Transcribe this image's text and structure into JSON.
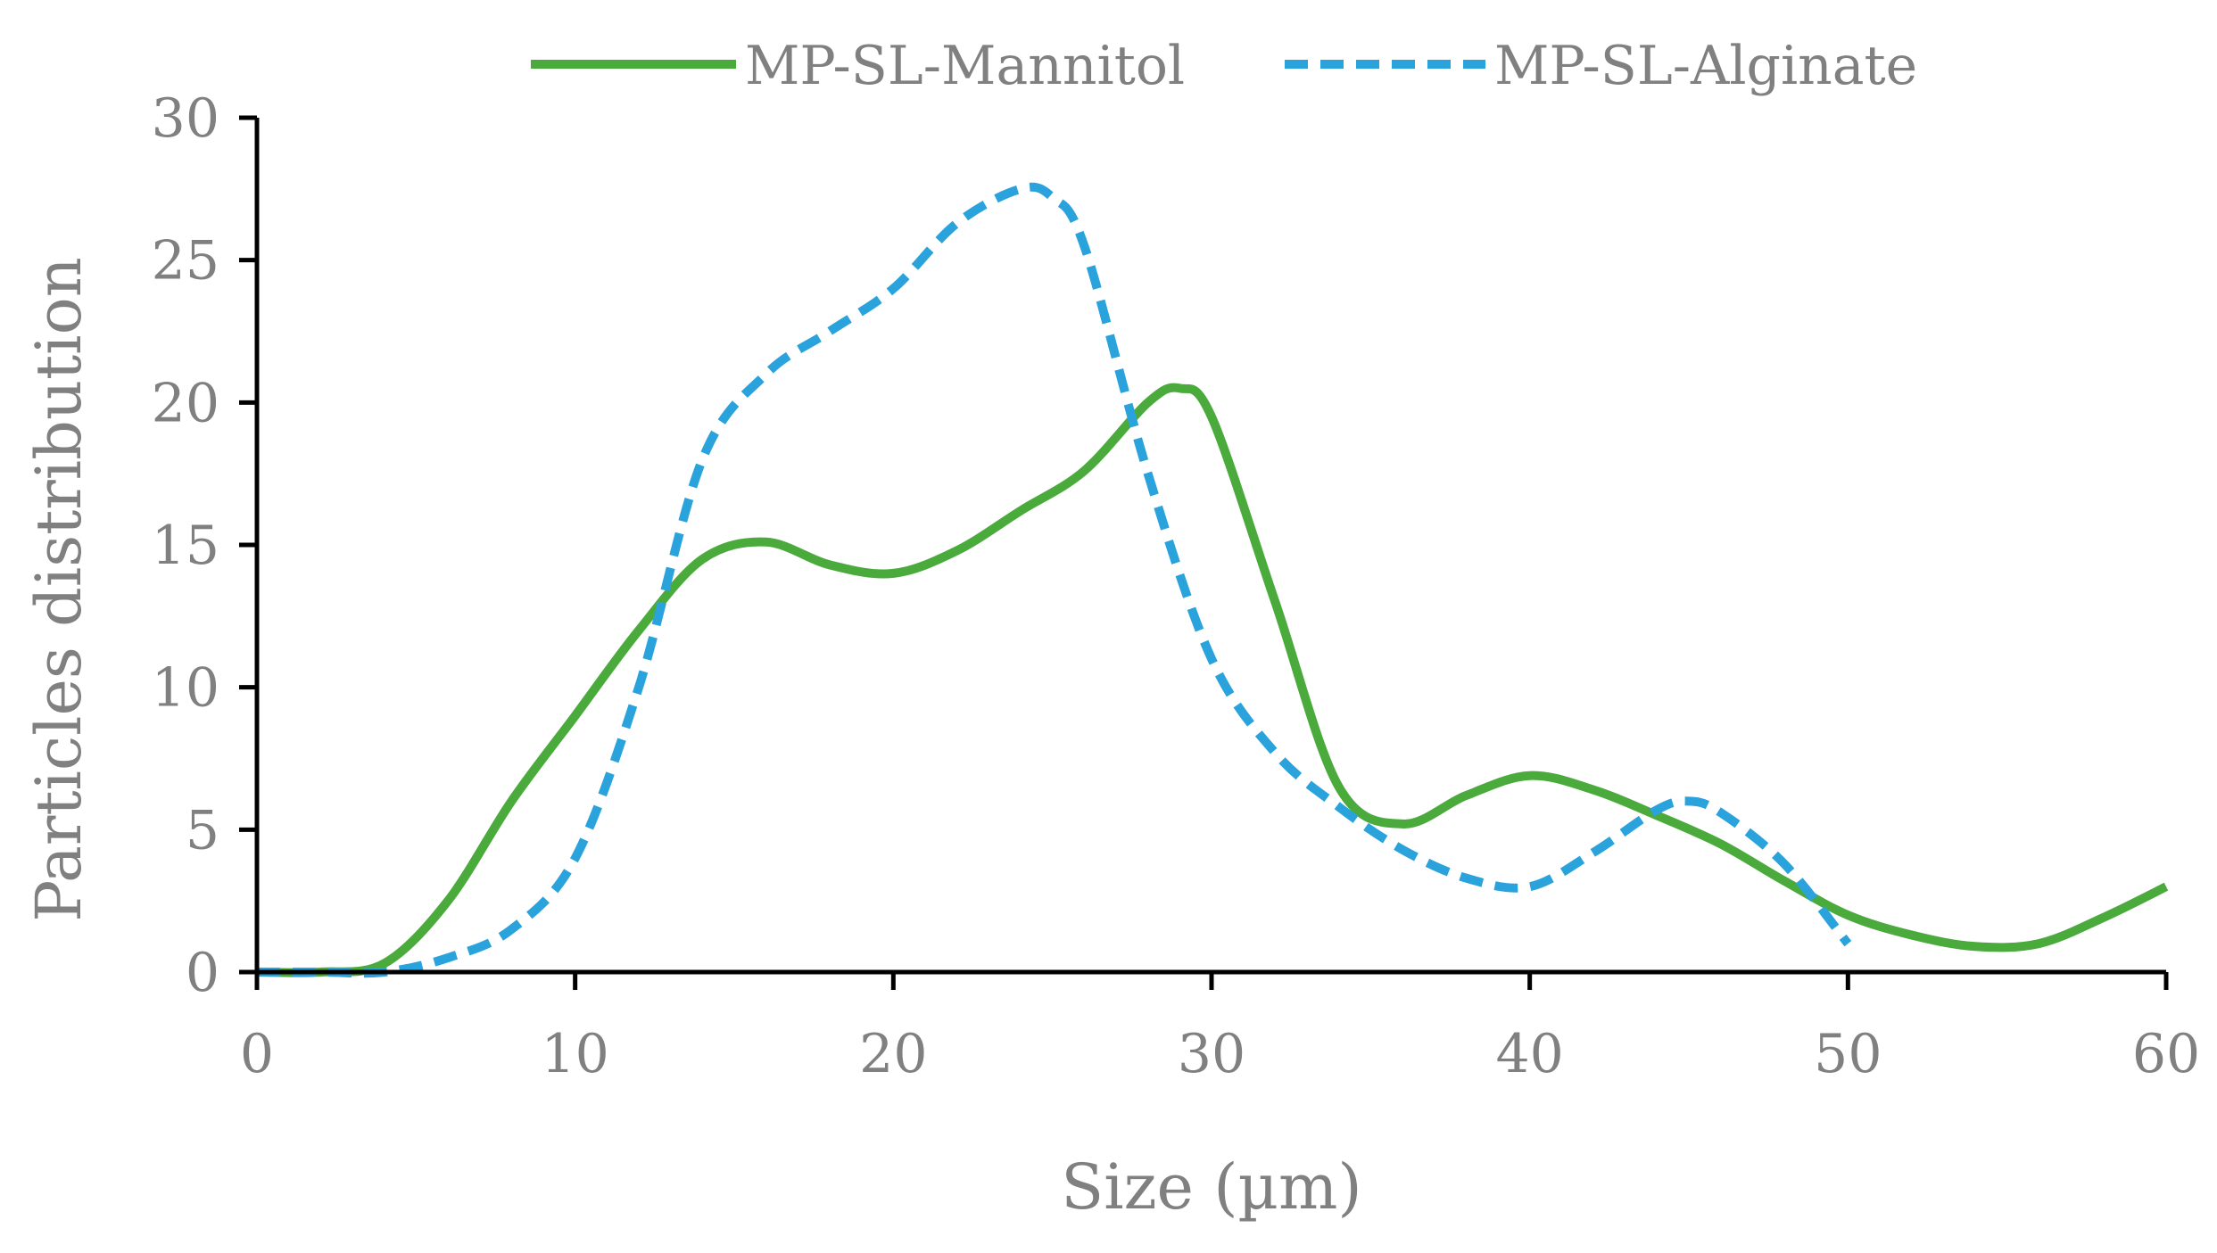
{
  "chart_data": {
    "type": "line",
    "title": "",
    "xlabel": "Size (µm)",
    "ylabel": "Particles distribution",
    "xlim": [
      0,
      60
    ],
    "ylim": [
      0,
      30
    ],
    "x_ticks": [
      0,
      10,
      20,
      30,
      40,
      50,
      60
    ],
    "y_ticks": [
      0,
      5,
      10,
      15,
      20,
      25,
      30
    ],
    "x_tick_labels": [
      "0",
      "10",
      "20",
      "30",
      "40",
      "50",
      "60"
    ],
    "y_tick_labels": [
      "0",
      "5",
      "10",
      "15",
      "20",
      "25",
      "30"
    ],
    "grid": false,
    "legend_position": "top-center",
    "series": [
      {
        "name": "MP-SL-Mannitol",
        "color": "#4aab3c",
        "style": "solid",
        "x": [
          0,
          2,
          4,
          6,
          8,
          10,
          12,
          14,
          16,
          18,
          20,
          22,
          24,
          26,
          28,
          29,
          30,
          32,
          34,
          36,
          38,
          40,
          42,
          44,
          46,
          48,
          50,
          52,
          54,
          56,
          58,
          60
        ],
        "values": [
          0,
          0,
          0.3,
          2.5,
          6,
          9,
          12,
          14.5,
          15.1,
          14.3,
          14,
          14.8,
          16.2,
          17.6,
          20,
          20.5,
          19.5,
          13,
          6.5,
          5.2,
          6.2,
          6.9,
          6.4,
          5.5,
          4.5,
          3.2,
          2,
          1.3,
          0.9,
          1,
          1.9,
          3
        ]
      },
      {
        "name": "MP-SL-Alginate",
        "color": "#2aa3dc",
        "style": "dashed",
        "x": [
          0,
          2,
          4,
          6,
          8,
          10,
          12,
          14,
          16,
          18,
          20,
          22,
          24,
          25,
          26,
          28,
          30,
          32,
          34,
          36,
          38,
          40,
          42,
          44,
          45,
          46,
          48,
          50
        ],
        "values": [
          0,
          0,
          0,
          0.5,
          1.5,
          4,
          10,
          18,
          21,
          22.5,
          24,
          26.3,
          27.5,
          27.2,
          25.5,
          17.5,
          11,
          7.7,
          5.8,
          4.3,
          3.3,
          3,
          4.2,
          5.7,
          6,
          5.6,
          3.8,
          1
        ]
      }
    ]
  }
}
